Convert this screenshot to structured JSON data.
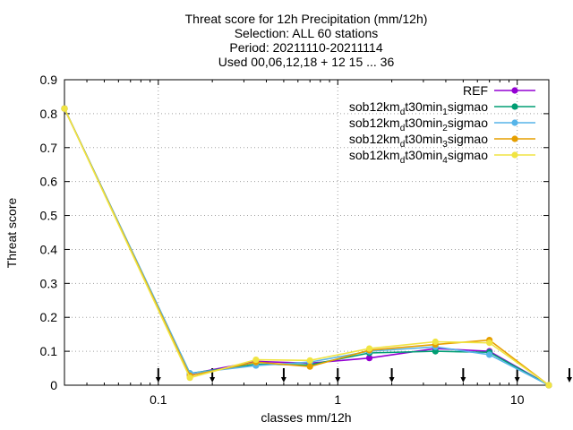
{
  "chart_data": {
    "type": "line",
    "title_lines": [
      "Threat score  for 12h Precipitation (mm/12h)",
      "Selection: ALL     60 stations",
      "Period: 20211110-20211114",
      "Used 00,06,12,18 + 12 15 ... 36"
    ],
    "xlabel": "classes mm/12h",
    "ylabel": "Threat score",
    "x_scale": "log",
    "xlim": [
      0.03,
      15
    ],
    "ylim": [
      0,
      0.9
    ],
    "x_ticks": [
      0.1,
      1,
      10
    ],
    "x_tick_labels": [
      "0.1",
      "1",
      "10"
    ],
    "y_ticks": [
      0,
      0.1,
      0.2,
      0.3,
      0.4,
      0.5,
      0.6,
      0.7,
      0.8,
      0.9
    ],
    "y_tick_labels": [
      "0",
      "0.1",
      "0.2",
      "0.3",
      "0.4",
      "0.5",
      "0.6",
      "0.7",
      "0.8",
      "0.9"
    ],
    "grid": true,
    "legend_position": "top-right",
    "class_markers_x": [
      0.1,
      0.2,
      0.5,
      1,
      2,
      5,
      10,
      20
    ],
    "x": [
      0.03,
      0.15,
      0.35,
      0.7,
      1.5,
      3.5,
      7,
      15
    ],
    "series": [
      {
        "name": "REF",
        "name_parts": {
          "base": "REF"
        },
        "color": "#9400d3",
        "values": [
          0.815,
          0.033,
          0.07,
          0.065,
          0.08,
          0.108,
          0.1,
          0.0
        ]
      },
      {
        "name": "sob12km_dt30min_1sigmao",
        "name_parts": {
          "a": "sob12km",
          "sub1": "d",
          "b": "t30min",
          "sub2": "1",
          "c": "sigmao"
        },
        "color": "#009e73",
        "values": [
          0.815,
          0.035,
          0.062,
          0.06,
          0.095,
          0.1,
          0.097,
          0.0
        ]
      },
      {
        "name": "sob12km_dt30min_2sigmao",
        "name_parts": {
          "a": "sob12km",
          "sub1": "d",
          "b": "t30min",
          "sub2": "2",
          "c": "sigmao"
        },
        "color": "#56b4e9",
        "values": [
          0.815,
          0.035,
          0.058,
          0.068,
          0.1,
          0.113,
          0.09,
          0.0
        ]
      },
      {
        "name": "sob12km_dt30min_3sigmao",
        "name_parts": {
          "a": "sob12km",
          "sub1": "d",
          "b": "t30min",
          "sub2": "3",
          "c": "sigmao"
        },
        "color": "#e69f00",
        "values": [
          0.815,
          0.028,
          0.068,
          0.055,
          0.103,
          0.12,
          0.133,
          0.0
        ]
      },
      {
        "name": "sob12km_dt30min_4sigmao",
        "name_parts": {
          "a": "sob12km",
          "sub1": "d",
          "b": "t30min",
          "sub2": "4",
          "c": "sigmao"
        },
        "color": "#f0e442",
        "values": [
          0.815,
          0.022,
          0.075,
          0.073,
          0.108,
          0.128,
          0.125,
          0.0
        ]
      }
    ]
  }
}
